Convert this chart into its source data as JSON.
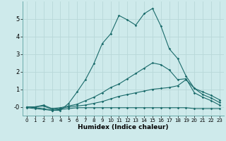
{
  "xlabel": "Humidex (Indice chaleur)",
  "background_color": "#ceeaeb",
  "grid_color": "#b8d8d8",
  "line_color": "#1a6b6b",
  "x_values": [
    0,
    1,
    2,
    3,
    4,
    5,
    6,
    7,
    8,
    9,
    10,
    11,
    12,
    13,
    14,
    15,
    16,
    17,
    18,
    19,
    20,
    21,
    22,
    23
  ],
  "line1": [
    0.0,
    -0.05,
    -0.1,
    -0.2,
    -0.15,
    -0.1,
    -0.05,
    -0.05,
    -0.05,
    -0.05,
    -0.05,
    -0.05,
    -0.05,
    -0.05,
    -0.05,
    -0.05,
    -0.05,
    -0.05,
    -0.05,
    -0.05,
    -0.1,
    -0.1,
    -0.1,
    -0.1
  ],
  "line2": [
    0.0,
    0.0,
    0.05,
    -0.15,
    -0.1,
    0.0,
    0.05,
    0.1,
    0.2,
    0.3,
    0.45,
    0.6,
    0.7,
    0.8,
    0.9,
    1.0,
    1.05,
    1.1,
    1.2,
    1.55,
    1.05,
    0.85,
    0.65,
    0.4
  ],
  "line3": [
    0.0,
    0.0,
    0.1,
    -0.1,
    -0.05,
    0.05,
    0.15,
    0.35,
    0.55,
    0.8,
    1.1,
    1.3,
    1.6,
    1.9,
    2.2,
    2.5,
    2.4,
    2.1,
    1.55,
    1.6,
    0.8,
    0.55,
    0.35,
    0.1
  ],
  "line4": [
    -0.05,
    -0.1,
    -0.15,
    -0.2,
    -0.2,
    0.2,
    0.85,
    1.55,
    2.45,
    3.6,
    4.15,
    5.2,
    4.95,
    4.65,
    5.3,
    5.6,
    4.6,
    3.3,
    2.75,
    1.75,
    1.05,
    0.7,
    0.5,
    0.25
  ],
  "ylim": [
    -0.5,
    6.0
  ],
  "xlim": [
    -0.5,
    23.5
  ],
  "yticks": [
    0,
    1,
    2,
    3,
    4,
    5
  ],
  "ytick_labels": [
    "-0",
    "1",
    "2",
    "3",
    "4",
    "5"
  ],
  "xticks": [
    0,
    1,
    2,
    3,
    4,
    5,
    6,
    7,
    8,
    9,
    10,
    11,
    12,
    13,
    14,
    15,
    16,
    17,
    18,
    19,
    20,
    21,
    22,
    23
  ]
}
